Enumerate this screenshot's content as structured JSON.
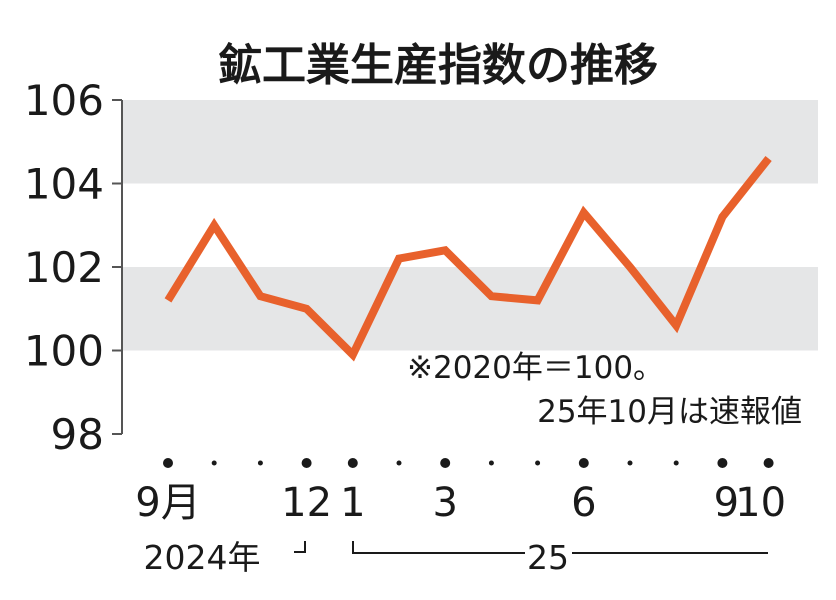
{
  "chart_data": {
    "type": "line",
    "title": "鉱工業生産指数の推移",
    "xlabel": "",
    "ylabel": "",
    "ylim": [
      98,
      106
    ],
    "yticks": [
      "106",
      "104",
      "102",
      "100",
      "98"
    ],
    "y_tick_values": [
      106,
      104,
      102,
      100,
      98
    ],
    "categories": [
      "2024-09",
      "2024-10",
      "2024-11",
      "2024-12",
      "2025-01",
      "2025-02",
      "2025-03",
      "2025-04",
      "2025-05",
      "2025-06",
      "2025-07",
      "2025-08",
      "2025-09",
      "2025-10"
    ],
    "values": [
      101.2,
      103.0,
      101.3,
      101.0,
      99.9,
      102.2,
      102.4,
      101.3,
      101.2,
      103.3,
      102.0,
      100.6,
      103.2,
      104.6
    ],
    "x_tick_labels": [
      "9月",
      "",
      "",
      "12",
      "1",
      "",
      "3",
      "",
      "",
      "6",
      "",
      "",
      "9",
      "10"
    ],
    "year_labels": {
      "left": "2024年",
      "right": "25"
    },
    "annotation": {
      "line1": "※2020年＝100。",
      "line2": "25年10月は速報値"
    },
    "shaded_bands": [
      [
        104,
        106
      ],
      [
        100,
        102
      ]
    ],
    "line_color": "#e8612c",
    "band_color": "#e5e6e7",
    "axis_color": "#555555",
    "text_color": "#1a1a1a",
    "grid": false,
    "legend": "none"
  }
}
